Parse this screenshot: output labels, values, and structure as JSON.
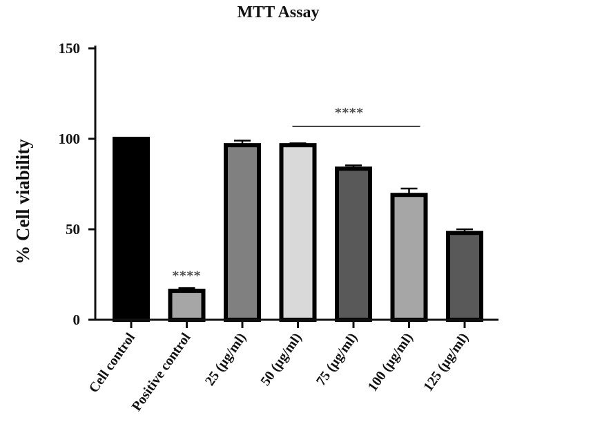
{
  "chart_data": {
    "type": "bar",
    "title": "MTT Assay",
    "xlabel": "",
    "ylabel": "% Cell viability",
    "ylim": [
      0,
      150
    ],
    "yticks": [
      0,
      50,
      100,
      150
    ],
    "categories": [
      "Cell control",
      "Positive control",
      "25 (µg/ml)",
      "50 (µg/ml)",
      "75 (µg/ml)",
      "100 (µg/ml)",
      "125 (µg/ml)"
    ],
    "values": [
      100,
      16,
      96.5,
      96.5,
      83.5,
      69,
      48
    ],
    "errors": [
      0,
      1.5,
      2.5,
      1,
      1.8,
      3.5,
      2
    ],
    "colors": [
      "#000000",
      "#a6a6a6",
      "#808080",
      "#d9d9d9",
      "#595959",
      "#a6a6a6",
      "#595959"
    ],
    "annotations": [
      {
        "text": "****",
        "target": "Positive control"
      },
      {
        "text": "****",
        "span": [
          "50 (µg/ml)",
          "100 (µg/ml)"
        ]
      }
    ],
    "grid": false,
    "legend": "none"
  }
}
